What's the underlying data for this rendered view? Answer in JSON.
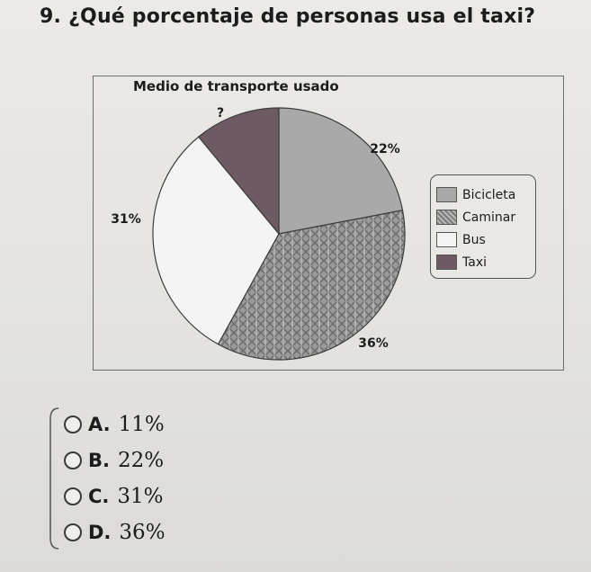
{
  "question": {
    "number": "9.",
    "text": "¿Qué porcentaje de personas usa el taxi?"
  },
  "chart_data": {
    "type": "pie",
    "title": "Medio de transporte usado",
    "slices": [
      {
        "name": "Bicicleta",
        "value": 22,
        "label": "22%",
        "color": "#a9a9a9",
        "pattern": "solid"
      },
      {
        "name": "Caminar",
        "value": 36,
        "label": "36%",
        "color": "#8f8f8f",
        "pattern": "texture"
      },
      {
        "name": "Bus",
        "value": 31,
        "label": "31%",
        "color": "#f4f4f4",
        "pattern": "solid"
      },
      {
        "name": "Taxi",
        "value": 11,
        "label": "?",
        "color": "#6e5a62",
        "pattern": "solid"
      }
    ],
    "start_direction": "top",
    "legend_position": "right"
  },
  "options": [
    {
      "letter": "A.",
      "text": "11%"
    },
    {
      "letter": "B.",
      "text": "22%"
    },
    {
      "letter": "C.",
      "text": "31%"
    },
    {
      "letter": "D.",
      "text": "36%"
    }
  ]
}
